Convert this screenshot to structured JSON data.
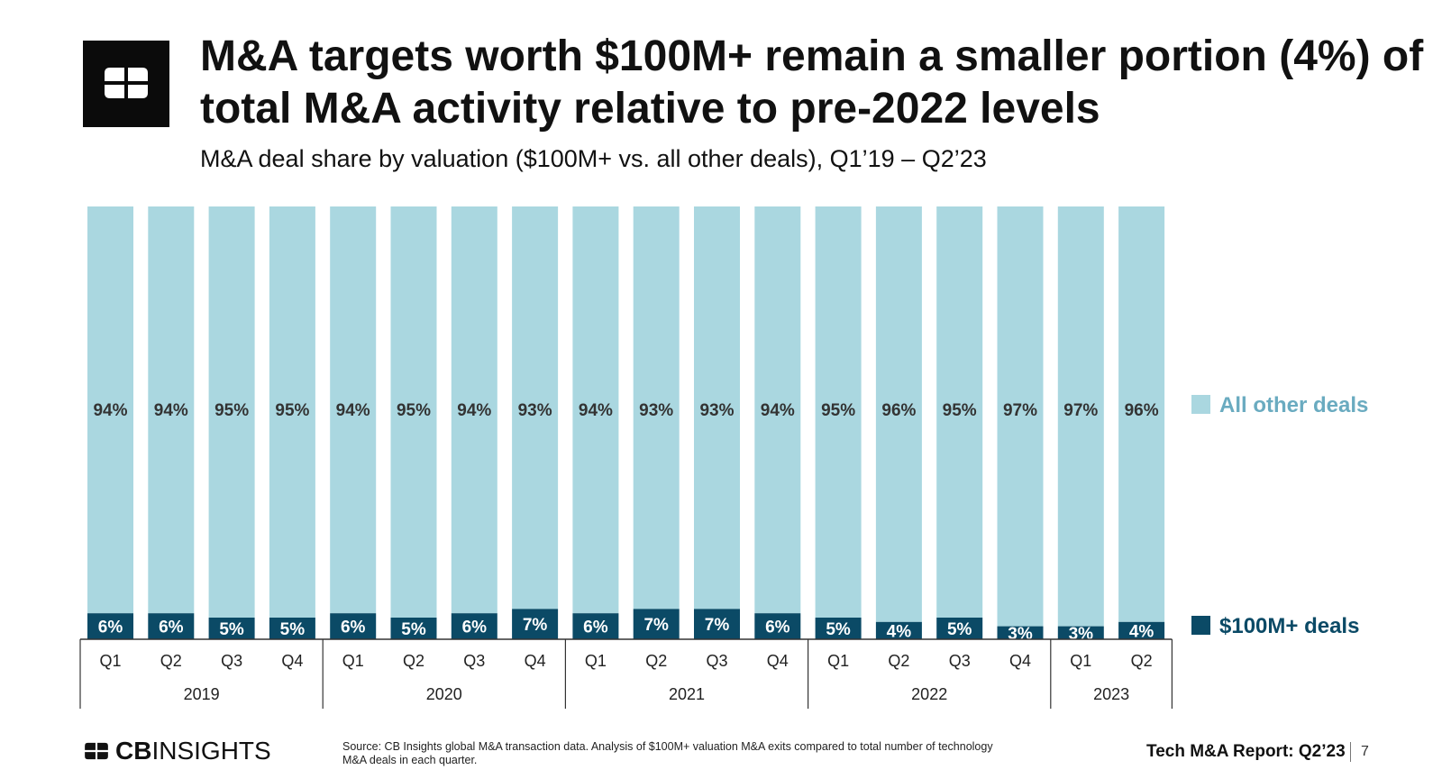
{
  "header": {
    "title_line1": "M&A targets worth $100M+ remain a smaller portion (4%) of",
    "title_line2": "total M&A activity relative to pre-2022 levels",
    "subtitle": "M&A deal share by valuation ($100M+ vs. all other deals), Q1’19 – Q2’23"
  },
  "chart_data": {
    "type": "bar",
    "stacked": true,
    "value_unit": "%",
    "categories": [
      "Q1",
      "Q2",
      "Q3",
      "Q4",
      "Q1",
      "Q2",
      "Q3",
      "Q4",
      "Q1",
      "Q2",
      "Q3",
      "Q4",
      "Q1",
      "Q2",
      "Q3",
      "Q4",
      "Q1",
      "Q2"
    ],
    "groups": [
      {
        "label": "2019",
        "count": 4
      },
      {
        "label": "2020",
        "count": 4
      },
      {
        "label": "2021",
        "count": 4
      },
      {
        "label": "2022",
        "count": 4
      },
      {
        "label": "2023",
        "count": 2
      }
    ],
    "series": [
      {
        "name": "$100M+ deals",
        "color": "#0b4a66",
        "values": [
          6,
          6,
          5,
          5,
          6,
          5,
          6,
          7,
          6,
          7,
          7,
          6,
          5,
          4,
          5,
          3,
          3,
          4
        ]
      },
      {
        "name": "All other deals",
        "color": "#aad7e0",
        "values": [
          94,
          94,
          95,
          95,
          94,
          95,
          94,
          93,
          94,
          93,
          93,
          94,
          95,
          96,
          95,
          97,
          97,
          96
        ]
      }
    ],
    "ylim": [
      0,
      100
    ],
    "legend_position": "right",
    "legend_colors": [
      "#6aabc0",
      "#0b4a66"
    ],
    "grid": false
  },
  "footer": {
    "brand_bold": "CB",
    "brand_light": "INSIGHTS",
    "source_line1": "Source: CB Insights global M&A transaction data. Analysis of $100M+ valuation M&A exits compared to total number of technology",
    "source_line2": "M&A deals in each quarter.",
    "report": "Tech M&A Report: Q2’23",
    "page": "7"
  }
}
